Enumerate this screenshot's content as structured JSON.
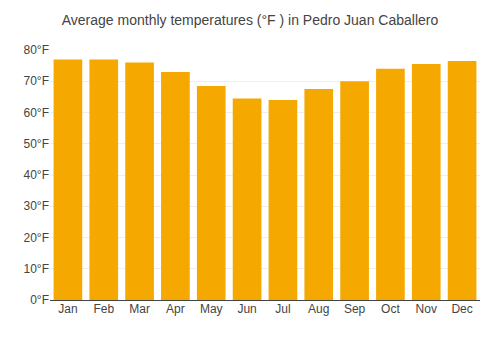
{
  "chart_data": {
    "type": "bar",
    "title": "Average monthly temperatures (°F ) in Pedro Juan Caballero",
    "categories": [
      "Jan",
      "Feb",
      "Mar",
      "Apr",
      "May",
      "Jun",
      "Jul",
      "Aug",
      "Sep",
      "Oct",
      "Nov",
      "Dec"
    ],
    "values": [
      77.0,
      77.0,
      76.0,
      73.0,
      68.5,
      64.5,
      64.0,
      67.5,
      70.0,
      74.0,
      75.5,
      76.5
    ],
    "color": "#F5A800",
    "ylim": [
      0,
      80
    ],
    "yticks": [
      {
        "value": 0,
        "label": "0°F"
      },
      {
        "value": 10,
        "label": "10°F"
      },
      {
        "value": 20,
        "label": "20°F"
      },
      {
        "value": 30,
        "label": "30°F"
      },
      {
        "value": 40,
        "label": "40°F"
      },
      {
        "value": 50,
        "label": "50°F"
      },
      {
        "value": 60,
        "label": "60°F"
      },
      {
        "value": 70,
        "label": "70°F"
      },
      {
        "value": 80,
        "label": "80°F"
      }
    ],
    "grid": true
  }
}
